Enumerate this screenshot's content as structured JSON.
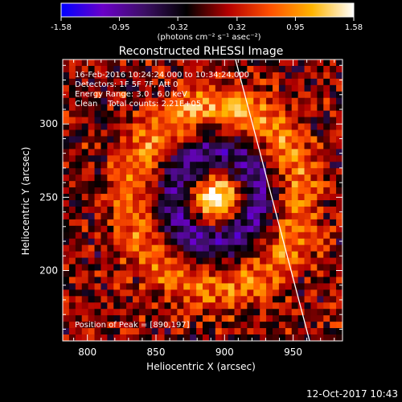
{
  "chart_data": {
    "type": "heatmap",
    "title": "Reconstructed RHESSI Image",
    "colorbar": {
      "min": -1.58,
      "max": 1.58,
      "ticks": [
        "-1.58",
        "-0.95",
        "-0.32",
        "0.32",
        "0.95",
        "1.58"
      ],
      "unit_label": "(photons cm⁻² s⁻¹ asec⁻²)",
      "colormap": [
        "#0000ff",
        "#6a00c8",
        "#3c0f64",
        "#000000",
        "#b40000",
        "#ff5000",
        "#ffb400",
        "#ffffff"
      ]
    },
    "xlabel": "Heliocentric X (arcsec)",
    "ylabel": "Heliocentric Y (arcsec)",
    "xlim": [
      782,
      986
    ],
    "ylim": [
      152,
      344
    ],
    "xticks": [
      800,
      850,
      900,
      950
    ],
    "yticks": [
      200,
      250,
      300
    ],
    "annotations": [
      "16-Feb-2016 10:24:24.000 to 10:34:24.000",
      "Detectors: 1F 5F 7F, Att 0",
      "Energy Range: 3.0 - 6.0 keV",
      "Clean    Total counts: 2.21E+05"
    ],
    "peak_label": "Position of Peak = [890,197]",
    "grid": false,
    "features": {
      "source_center": [
        894,
        250
      ],
      "ring_radius_arcsec": 62,
      "limb_line": [
        [
          908,
          344
        ],
        [
          962,
          152
        ]
      ]
    }
  },
  "footer": {
    "date": "12-Oct-2017 10:43"
  }
}
